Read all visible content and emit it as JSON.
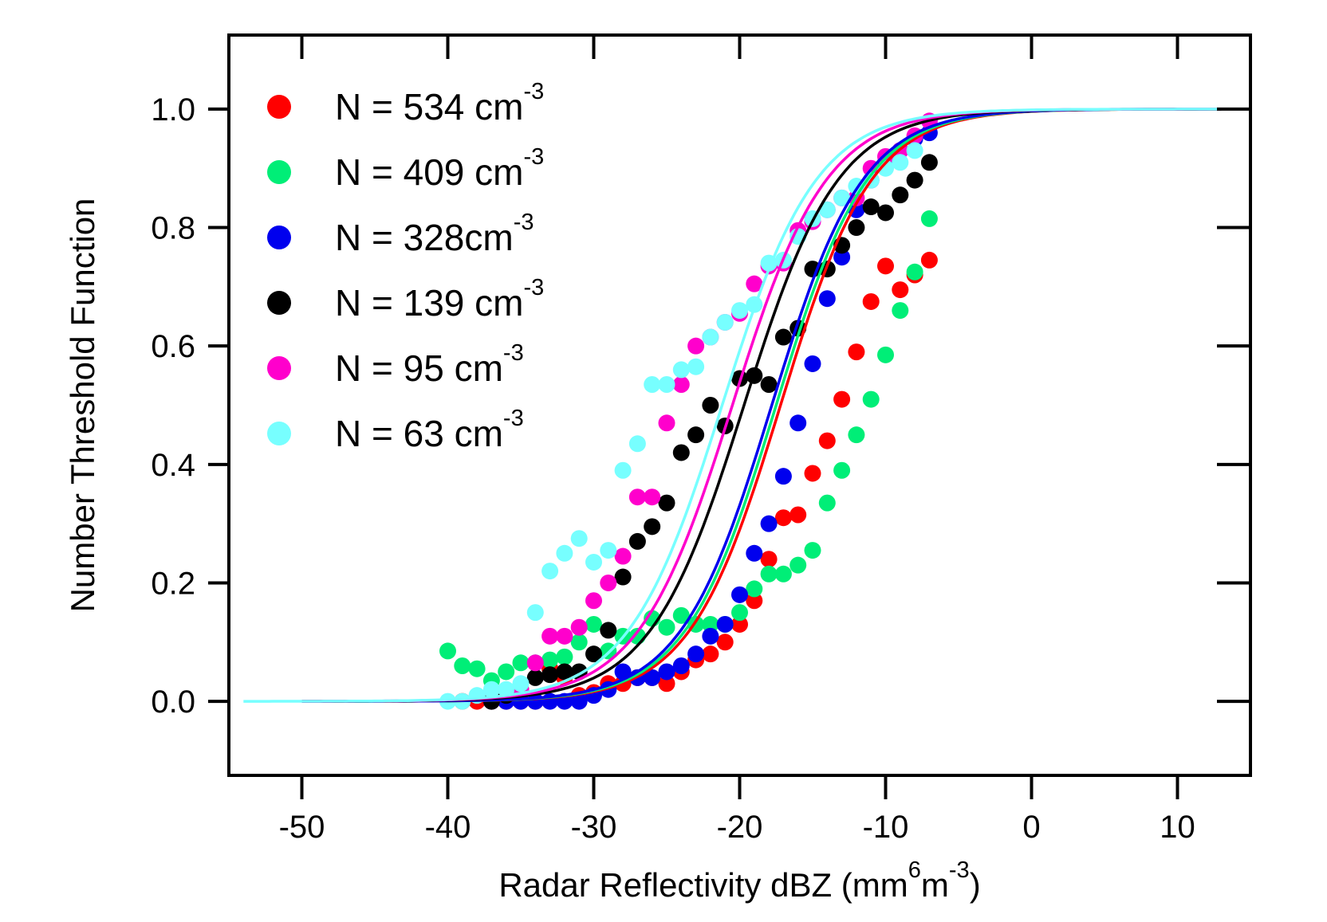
{
  "chart_data": {
    "type": "scatter",
    "xlabel": {
      "base": "Radar Reflectivity dBZ (mm",
      "sup1": "6",
      "mid": "m",
      "sup2": "-3",
      "end": ")"
    },
    "ylabel": "Number Threshold Function",
    "xlim": [
      -55,
      15
    ],
    "ylim": [
      -0.125,
      1.125
    ],
    "xticks": [
      -50,
      -40,
      -30,
      -20,
      -10,
      0,
      10
    ],
    "xtick_labels": [
      "-50",
      "-40",
      "-30",
      "-20",
      "-10",
      "0",
      "10"
    ],
    "yticks": [
      0.0,
      0.2,
      0.4,
      0.6,
      0.8,
      1.0
    ],
    "ytick_labels": [
      "0.0",
      "0.2",
      "0.4",
      "0.6",
      "0.8",
      "1.0"
    ],
    "grid": false,
    "legend_position": "top-left",
    "series": [
      {
        "name": "N = 534 cm",
        "sup": "-3",
        "color": "#ff0000",
        "fit": {
          "x0": -17.2,
          "k": 0.32,
          "xmin": -50,
          "xmax": 13
        },
        "points": [
          [
            -39,
            0
          ],
          [
            -38,
            0
          ],
          [
            -37,
            0
          ],
          [
            -36,
            0
          ],
          [
            -35,
            0
          ],
          [
            -34,
            0
          ],
          [
            -33,
            0.055
          ],
          [
            -32,
            0.04
          ],
          [
            -31,
            0.01
          ],
          [
            -30,
            0.015
          ],
          [
            -29,
            0.03
          ],
          [
            -28,
            0.03
          ],
          [
            -27,
            0.04
          ],
          [
            -26,
            0.04
          ],
          [
            -25,
            0.03
          ],
          [
            -24,
            0.05
          ],
          [
            -23,
            0.07
          ],
          [
            -22,
            0.08
          ],
          [
            -21,
            0.1
          ],
          [
            -20,
            0.13
          ],
          [
            -19,
            0.17
          ],
          [
            -18,
            0.24
          ],
          [
            -17,
            0.31
          ],
          [
            -16,
            0.315
          ],
          [
            -15,
            0.385
          ],
          [
            -14,
            0.44
          ],
          [
            -13,
            0.51
          ],
          [
            -12,
            0.59
          ],
          [
            -11,
            0.675
          ],
          [
            -10,
            0.735
          ],
          [
            -9,
            0.695
          ],
          [
            -8,
            0.72
          ],
          [
            -7,
            0.745
          ]
        ]
      },
      {
        "name": "N = 409 cm",
        "sup": "-3",
        "color": "#00ee77",
        "fit": {
          "x0": -17.5,
          "k": 0.32,
          "xmin": -50,
          "xmax": 13
        },
        "points": [
          [
            -40,
            0.085
          ],
          [
            -39,
            0.06
          ],
          [
            -38,
            0.055
          ],
          [
            -37,
            0.035
          ],
          [
            -36,
            0.05
          ],
          [
            -35,
            0.065
          ],
          [
            -34,
            0.065
          ],
          [
            -33,
            0.07
          ],
          [
            -32,
            0.075
          ],
          [
            -31,
            0.1
          ],
          [
            -30,
            0.13
          ],
          [
            -29,
            0.085
          ],
          [
            -28,
            0.11
          ],
          [
            -27,
            0.11
          ],
          [
            -26,
            0.14
          ],
          [
            -25,
            0.125
          ],
          [
            -24,
            0.145
          ],
          [
            -23,
            0.13
          ],
          [
            -22,
            0.13
          ],
          [
            -21,
            0.13
          ],
          [
            -20,
            0.15
          ],
          [
            -19,
            0.19
          ],
          [
            -18,
            0.215
          ],
          [
            -17,
            0.215
          ],
          [
            -16,
            0.23
          ],
          [
            -15,
            0.255
          ],
          [
            -14,
            0.335
          ],
          [
            -13,
            0.39
          ],
          [
            -12,
            0.45
          ],
          [
            -11,
            0.51
          ],
          [
            -10,
            0.585
          ],
          [
            -9,
            0.66
          ],
          [
            -8,
            0.725
          ],
          [
            -7,
            0.815
          ]
        ]
      },
      {
        "name": "N = 328cm",
        "sup": "-3",
        "color": "#0000ee",
        "fit": {
          "x0": -17.8,
          "k": 0.32,
          "xmin": -50,
          "xmax": 13
        },
        "points": [
          [
            -37,
            0
          ],
          [
            -36,
            0
          ],
          [
            -35,
            0
          ],
          [
            -34,
            0
          ],
          [
            -33,
            0
          ],
          [
            -32,
            0
          ],
          [
            -31,
            0
          ],
          [
            -30,
            0.01
          ],
          [
            -29,
            0.02
          ],
          [
            -28,
            0.05
          ],
          [
            -27,
            0.04
          ],
          [
            -26,
            0.04
          ],
          [
            -25,
            0.05
          ],
          [
            -24,
            0.06
          ],
          [
            -23,
            0.08
          ],
          [
            -22,
            0.11
          ],
          [
            -21,
            0.13
          ],
          [
            -20,
            0.18
          ],
          [
            -19,
            0.25
          ],
          [
            -18,
            0.3
          ],
          [
            -17,
            0.38
          ],
          [
            -16,
            0.47
          ],
          [
            -15,
            0.57
          ],
          [
            -14,
            0.68
          ],
          [
            -13,
            0.75
          ],
          [
            -12,
            0.83
          ],
          [
            -11,
            0.88
          ],
          [
            -10,
            0.91
          ],
          [
            -9,
            0.93
          ],
          [
            -8,
            0.95
          ],
          [
            -7,
            0.96
          ]
        ]
      },
      {
        "name": "N = 139 cm",
        "sup": "-3",
        "color": "#000000",
        "fit": {
          "x0": -19.7,
          "k": 0.31,
          "xmin": -50,
          "xmax": 13
        },
        "points": [
          [
            -37,
            0
          ],
          [
            -36,
            0.01
          ],
          [
            -35,
            0.02
          ],
          [
            -34,
            0.04
          ],
          [
            -33,
            0.045
          ],
          [
            -32,
            0.05
          ],
          [
            -31,
            0.05
          ],
          [
            -30,
            0.08
          ],
          [
            -29,
            0.12
          ],
          [
            -28,
            0.21
          ],
          [
            -27,
            0.27
          ],
          [
            -26,
            0.295
          ],
          [
            -25,
            0.335
          ],
          [
            -24,
            0.42
          ],
          [
            -23,
            0.45
          ],
          [
            -22,
            0.5
          ],
          [
            -21,
            0.465
          ],
          [
            -20,
            0.545
          ],
          [
            -19,
            0.55
          ],
          [
            -18,
            0.535
          ],
          [
            -17,
            0.615
          ],
          [
            -16,
            0.63
          ],
          [
            -15,
            0.73
          ],
          [
            -14,
            0.73
          ],
          [
            -13,
            0.77
          ],
          [
            -12,
            0.8
          ],
          [
            -11,
            0.835
          ],
          [
            -10,
            0.825
          ],
          [
            -9,
            0.855
          ],
          [
            -8,
            0.88
          ],
          [
            -7,
            0.91
          ]
        ]
      },
      {
        "name": "N = 95 cm",
        "sup": "-3",
        "color": "#ff00cc",
        "fit": {
          "x0": -20.5,
          "k": 0.31,
          "xmin": -50,
          "xmax": 13
        },
        "points": [
          [
            -35,
            0.02
          ],
          [
            -34,
            0.065
          ],
          [
            -33,
            0.11
          ],
          [
            -32,
            0.11
          ],
          [
            -31,
            0.125
          ],
          [
            -30,
            0.17
          ],
          [
            -29,
            0.2
          ],
          [
            -28,
            0.245
          ],
          [
            -27,
            0.345
          ],
          [
            -26,
            0.345
          ],
          [
            -25,
            0.47
          ],
          [
            -24,
            0.535
          ],
          [
            -23,
            0.6
          ],
          [
            -22,
            0.615
          ],
          [
            -21,
            0.64
          ],
          [
            -20,
            0.655
          ],
          [
            -19,
            0.705
          ],
          [
            -18,
            0.735
          ],
          [
            -17,
            0.74
          ],
          [
            -16,
            0.795
          ],
          [
            -15,
            0.81
          ],
          [
            -14,
            0.83
          ],
          [
            -13,
            0.85
          ],
          [
            -12,
            0.85
          ],
          [
            -11,
            0.9
          ],
          [
            -10,
            0.92
          ],
          [
            -9,
            0.93
          ],
          [
            -8,
            0.955
          ],
          [
            -7,
            0.98
          ]
        ]
      },
      {
        "name": "N = 63 cm",
        "sup": "-3",
        "color": "#77ffff",
        "fit": {
          "x0": -21.2,
          "k": 0.31,
          "xmin": -54,
          "xmax": 13
        },
        "points": [
          [
            -40,
            0
          ],
          [
            -39,
            0
          ],
          [
            -38,
            0.01
          ],
          [
            -37,
            0.02
          ],
          [
            -36,
            0.02
          ],
          [
            -35,
            0.03
          ],
          [
            -34,
            0.15
          ],
          [
            -33,
            0.22
          ],
          [
            -32,
            0.25
          ],
          [
            -31,
            0.275
          ],
          [
            -30,
            0.235
          ],
          [
            -29,
            0.255
          ],
          [
            -28,
            0.39
          ],
          [
            -27,
            0.435
          ],
          [
            -26,
            0.535
          ],
          [
            -25,
            0.535
          ],
          [
            -24,
            0.56
          ],
          [
            -23,
            0.565
          ],
          [
            -22,
            0.615
          ],
          [
            -21,
            0.64
          ],
          [
            -20,
            0.66
          ],
          [
            -19,
            0.67
          ],
          [
            -18,
            0.74
          ],
          [
            -17,
            0.745
          ],
          [
            -16,
            0.785
          ],
          [
            -15,
            0.815
          ],
          [
            -14,
            0.83
          ],
          [
            -13,
            0.85
          ],
          [
            -12,
            0.87
          ],
          [
            -11,
            0.88
          ],
          [
            -10,
            0.9
          ],
          [
            -9,
            0.91
          ],
          [
            -8,
            0.93
          ]
        ]
      }
    ]
  }
}
